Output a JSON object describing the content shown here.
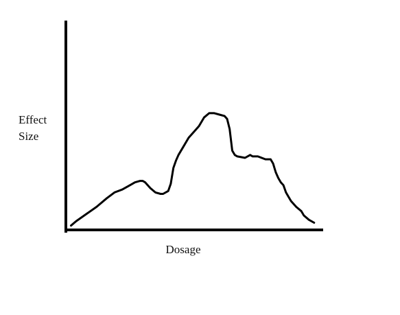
{
  "chart_data": {
    "type": "line",
    "title": "",
    "xlabel": "Dosage",
    "ylabel": "Effect Size",
    "ylabel_lines": [
      "Effect",
      "Size"
    ],
    "ticks": "none",
    "grid": false,
    "legend": "none",
    "xlim": [
      0,
      100
    ],
    "ylim": [
      0,
      100
    ],
    "series": [
      {
        "x": [
          2,
          4,
          8,
          12,
          16,
          19,
          22,
          25,
          27,
          29,
          30,
          31,
          33,
          35,
          37,
          38,
          40,
          41,
          42,
          43,
          44,
          46,
          48,
          50,
          52,
          54,
          56,
          58,
          60,
          62,
          63,
          64,
          65,
          66,
          67,
          70,
          72,
          73,
          74,
          75,
          78,
          80,
          81,
          82,
          83,
          84,
          85,
          86,
          87,
          88,
          90,
          92,
          93,
          95,
          97
        ],
        "y": [
          3,
          6,
          11,
          16,
          22,
          26,
          28,
          31,
          33,
          34,
          34,
          33,
          29,
          26,
          25,
          25,
          27,
          32,
          43,
          48,
          52,
          58,
          64,
          68,
          72,
          78,
          81,
          81,
          80,
          79,
          77,
          70,
          55,
          52,
          51,
          50,
          52,
          51,
          51,
          51,
          49,
          49,
          46,
          40,
          36,
          33,
          31,
          26,
          23,
          20,
          16,
          13,
          10,
          7,
          5
        ]
      }
    ],
    "colors": {
      "line": "#000000",
      "axes": "#000000",
      "text": "#111111"
    }
  }
}
